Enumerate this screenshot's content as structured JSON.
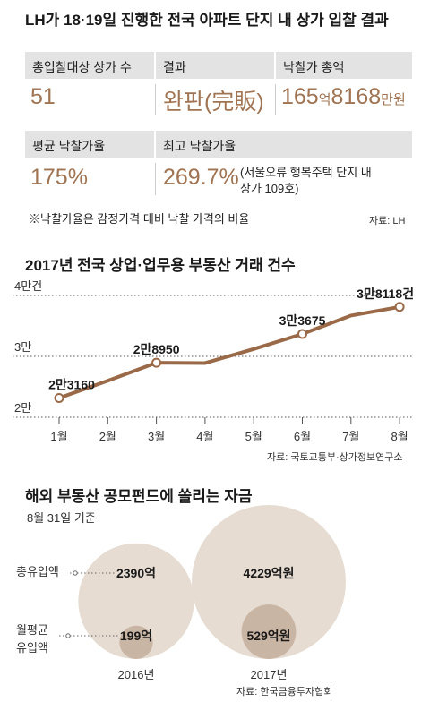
{
  "section1": {
    "title": "LH가 18·19일 진행한 전국 아파트 단지 내 상가 입찰 결과",
    "cells": [
      {
        "label": "총입찰대상 상가 수",
        "value": "51"
      },
      {
        "label": "결과",
        "value": "완판(完販)"
      },
      {
        "label": "낙찰가 총액",
        "value_parts": [
          "165",
          "억",
          "8168",
          "만원"
        ]
      },
      {
        "label": "평균 낙찰가율",
        "value": "175%"
      },
      {
        "label": "최고 낙찰가율",
        "value": "269.7%",
        "value_note": "(서울오류 행복주택 단지 내 상가 109호)",
        "value_note_lines": [
          "(서울오류 행복주택 단지 내",
          "상가 109호)"
        ]
      }
    ],
    "footnote": "※낙찰가율은 감정가격 대비 낙찰 가격의 비율",
    "source": "자료: LH"
  },
  "section2": {
    "title": "2017년 전국 상업·업무용 부동산 거래 건수",
    "source": "자료: 국토교통부·상가정보연구소"
  },
  "section3": {
    "title": "해외 부동산 공모펀드에 쏠리는 자금",
    "subtitle": "8월 31일 기준",
    "row_labels": {
      "total": "총유입액",
      "monthly": "월평균 유입액",
      "monthly_lines": [
        "월평균",
        "유입액"
      ]
    },
    "source": "자료: 한국금융투자협회"
  },
  "colors": {
    "accent": "#a07452",
    "line": "#9a6a48",
    "circle_large": "#e6dcd2",
    "circle_small": "#c9b5a3",
    "header_bg": "#e3e3e3"
  },
  "chart_data": [
    {
      "type": "line",
      "title": "2017년 전국 상업·업무용 부동산 거래 건수",
      "x": [
        "1월",
        "2월",
        "3월",
        "4월",
        "5월",
        "6월",
        "7월",
        "8월"
      ],
      "values": [
        23160,
        26000,
        28950,
        28900,
        31200,
        33675,
        36700,
        38118
      ],
      "data_labels": [
        {
          "index": 0,
          "text": "2만3160"
        },
        {
          "index": 2,
          "text": "2만8950"
        },
        {
          "index": 5,
          "text": "3만3675"
        },
        {
          "index": 7,
          "text": "3만8118건"
        }
      ],
      "yticks": [
        {
          "value": 20000,
          "label": "2만"
        },
        {
          "value": 30000,
          "label": "3만"
        },
        {
          "value": 40000,
          "label": "4만건"
        }
      ],
      "ylim": [
        20000,
        40000
      ],
      "grid": true
    },
    {
      "type": "bubble",
      "title": "해외 부동산 공모펀드에 쏠리는 자금",
      "categories": [
        "2016년",
        "2017년"
      ],
      "series": [
        {
          "name": "총유입액",
          "values": [
            2390,
            4229
          ],
          "labels": [
            "2390억",
            "4229억원"
          ]
        },
        {
          "name": "월평균 유입액",
          "values": [
            199,
            529
          ],
          "labels": [
            "199억",
            "529억원"
          ]
        }
      ],
      "unit": "억원"
    }
  ]
}
